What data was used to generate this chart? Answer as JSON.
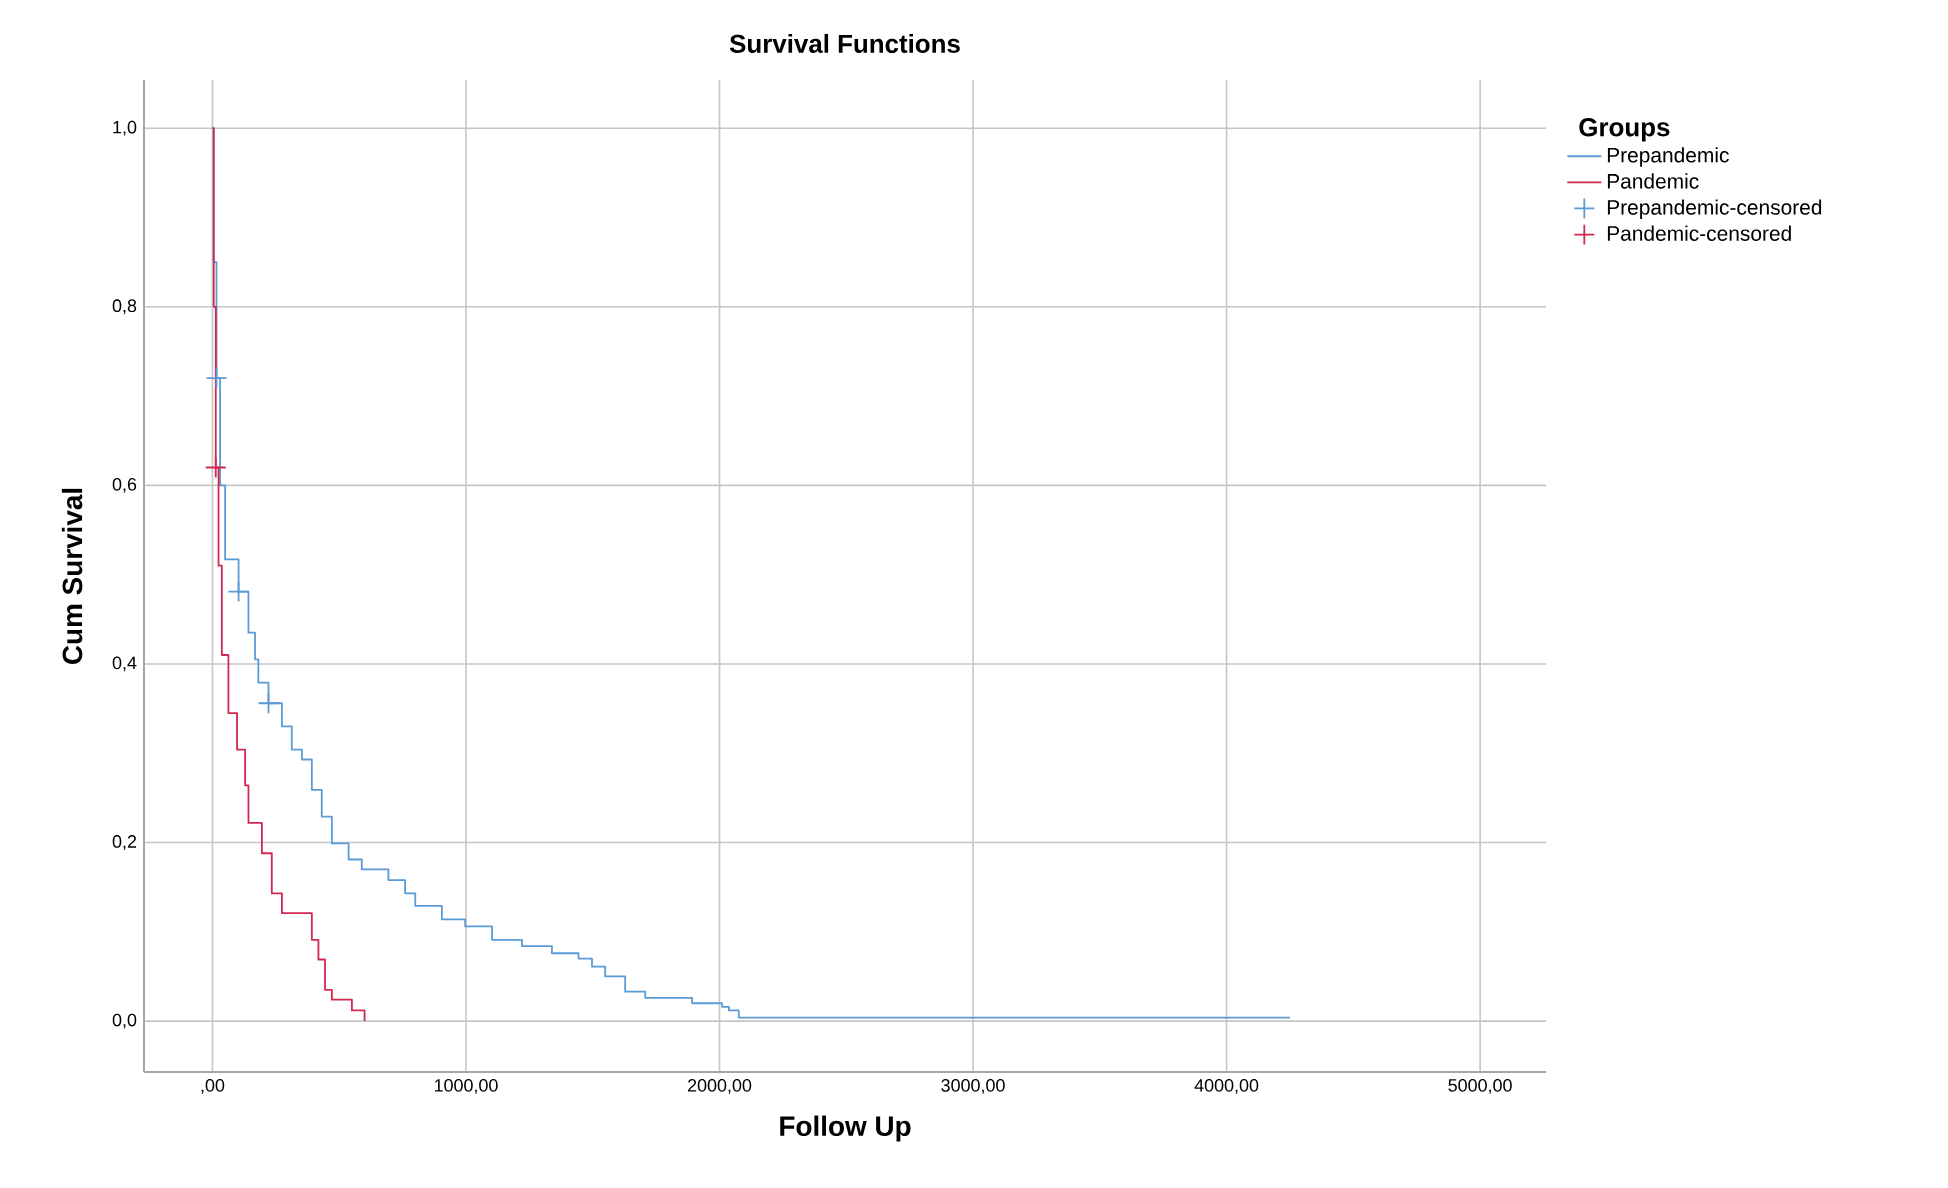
{
  "chart_data": {
    "type": "step",
    "title": "Survival Functions",
    "xlabel": "Follow Up",
    "ylabel": "Cum Survival",
    "legend_title": "Groups",
    "xlim": [
      -270,
      5260
    ],
    "ylim": [
      -0.057,
      1.054
    ],
    "xticks": [
      {
        "value": 0,
        "label": ",00"
      },
      {
        "value": 1000,
        "label": "1000,00"
      },
      {
        "value": 2000,
        "label": "2000,00"
      },
      {
        "value": 3000,
        "label": "3000,00"
      },
      {
        "value": 4000,
        "label": "4000,00"
      },
      {
        "value": 5000,
        "label": "5000,00"
      }
    ],
    "yticks": [
      {
        "value": 0,
        "label": "0,0"
      },
      {
        "value": 0.2,
        "label": "0,2"
      },
      {
        "value": 0.4,
        "label": "0,4"
      },
      {
        "value": 0.6,
        "label": "0,6"
      },
      {
        "value": 0.8,
        "label": "0,8"
      },
      {
        "value": 1.0,
        "label": "1,0"
      }
    ],
    "grid": true,
    "legend": "right",
    "series": [
      {
        "name": "Prepandemic",
        "color": "#5b9bd5",
        "x": [
          0,
          5,
          16,
          30,
          50,
          103,
          142,
          168,
          181,
          221,
          274,
          313,
          353,
          392,
          431,
          471,
          537,
          589,
          694,
          760,
          800,
          905,
          997,
          1103,
          1221,
          1339,
          1444,
          1497,
          1549,
          1628,
          1707,
          1892,
          2010,
          2037,
          2076,
          4250
        ],
        "values": [
          1.0,
          0.85,
          0.72,
          0.6,
          0.517,
          0.481,
          0.435,
          0.405,
          0.379,
          0.356,
          0.33,
          0.304,
          0.293,
          0.259,
          0.229,
          0.199,
          0.181,
          0.17,
          0.158,
          0.143,
          0.129,
          0.114,
          0.106,
          0.091,
          0.084,
          0.076,
          0.07,
          0.061,
          0.05,
          0.033,
          0.026,
          0.02,
          0.016,
          0.012,
          0.004,
          0.004
        ]
      },
      {
        "name": "Pandemic",
        "color": "#d0284e",
        "x": [
          0,
          5,
          13,
          24,
          37,
          63,
          97,
          129,
          142,
          195,
          234,
          274,
          392,
          418,
          444,
          471,
          550,
          600
        ],
        "values": [
          1.0,
          0.8,
          0.62,
          0.51,
          0.41,
          0.345,
          0.304,
          0.264,
          0.222,
          0.188,
          0.143,
          0.121,
          0.091,
          0.069,
          0.035,
          0.024,
          0.012,
          0.0
        ]
      },
      {
        "name": "Prepandemic-censored",
        "type": "scatter",
        "marker": "cross",
        "color": "#5b9bd5",
        "x": [
          16,
          103,
          221
        ],
        "values": [
          0.72,
          0.481,
          0.356
        ]
      },
      {
        "name": "Pandemic-censored",
        "type": "scatter",
        "marker": "cross",
        "color": "#d0284e",
        "x": [
          13
        ],
        "values": [
          0.62
        ]
      }
    ]
  }
}
